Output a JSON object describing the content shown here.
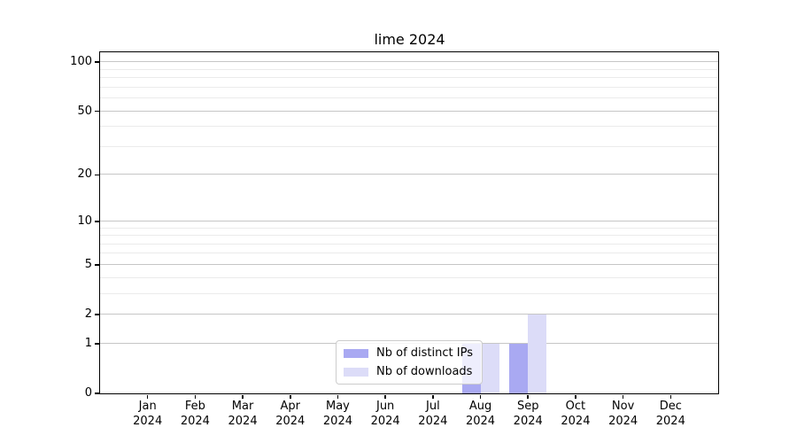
{
  "chart_data": {
    "type": "bar",
    "title": "lime 2024",
    "months": [
      "Jan",
      "Feb",
      "Mar",
      "Apr",
      "May",
      "Jun",
      "Jul",
      "Aug",
      "Sep",
      "Oct",
      "Nov",
      "Dec"
    ],
    "year_label": "2024",
    "series": [
      {
        "name": "Nb of distinct IPs",
        "color": "#a9a9f2",
        "values": [
          0,
          0,
          0,
          0,
          0,
          0,
          0,
          1,
          1,
          0,
          0,
          0
        ]
      },
      {
        "name": "Nb of downloads",
        "color": "#dcdcf8",
        "values": [
          0,
          0,
          0,
          0,
          0,
          0,
          0,
          1,
          2,
          0,
          0,
          0
        ]
      }
    ],
    "yscale": "log1p",
    "ylim": [
      0,
      115
    ],
    "y_ticks": [
      0,
      1,
      2,
      5,
      10,
      20,
      50,
      100
    ],
    "y_minor_gridlines": [
      3,
      4,
      6,
      7,
      8,
      9,
      30,
      40,
      60,
      70,
      80,
      90
    ],
    "grid": "horizontal",
    "legend_position": "lower center",
    "xlabel": "",
    "ylabel": ""
  }
}
